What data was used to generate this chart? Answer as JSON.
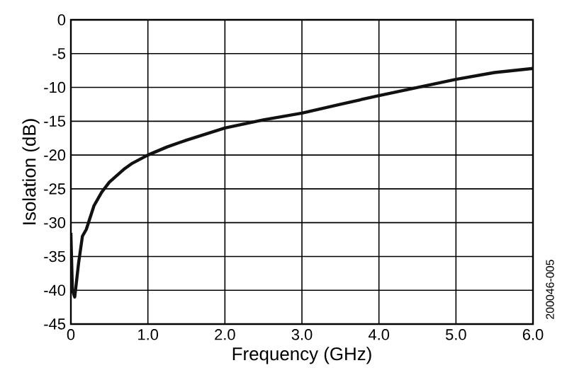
{
  "chart_data": {
    "type": "line",
    "xlabel": "Frequency (GHz)",
    "ylabel": "Isolation (dB)",
    "annotations": [
      "200046-005"
    ],
    "x": [
      0,
      0.02,
      0.05,
      0.1,
      0.15,
      0.2,
      0.3,
      0.4,
      0.5,
      0.6,
      0.7,
      0.8,
      1.0,
      1.25,
      1.5,
      2.0,
      2.5,
      3.0,
      3.5,
      4.0,
      4.5,
      5.0,
      5.5,
      6.0
    ],
    "series": [
      {
        "color": "#111111",
        "values": [
          -31.5,
          -40,
          -41,
          -36,
          -32,
          -31,
          -27.5,
          -25.5,
          -24,
          -23,
          -22,
          -21.2,
          -20,
          -18.8,
          -17.8,
          -16,
          -14.8,
          -13.8,
          -12.5,
          -11.2,
          -10,
          -8.8,
          -7.8,
          -7.2
        ]
      }
    ],
    "xlim": [
      0,
      6
    ],
    "ylim": [
      -45,
      0
    ],
    "xticks": [
      0,
      {
        "value": 1,
        "label": "1.0"
      },
      {
        "value": 2,
        "label": "2.0"
      },
      {
        "value": 3,
        "label": "3.0"
      },
      {
        "value": 4,
        "label": "4.0"
      },
      {
        "value": 5,
        "label": "5.0"
      },
      {
        "value": 6,
        "label": "6.0"
      }
    ],
    "yticks": [
      0,
      -5,
      -10,
      -15,
      -20,
      -25,
      -30,
      -35,
      -40,
      -45
    ],
    "grid": true,
    "marker": "none",
    "line_style": "solid"
  }
}
